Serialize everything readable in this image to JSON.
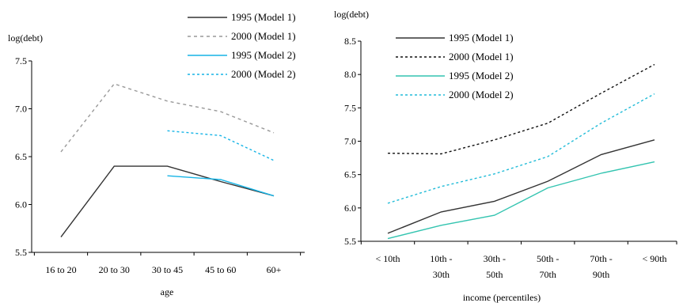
{
  "chart_data": [
    {
      "type": "line",
      "title": "",
      "ylabel": "log(debt)",
      "xlabel": "age",
      "categories": [
        [
          "16 to 20"
        ],
        [
          "20 to 30"
        ],
        [
          "30 to 45"
        ],
        [
          "45 to 60"
        ],
        [
          "60+"
        ]
      ],
      "ylim": [
        5.5,
        7.5
      ],
      "yticks": [
        "5.5",
        "6.0",
        "6.5",
        "7.0",
        "7.5"
      ],
      "grid": false,
      "legend_position": "top-right",
      "series": [
        {
          "name": "1995 (Model 1)",
          "color": "#333333",
          "dash": "solid",
          "values": [
            5.66,
            6.4,
            6.4,
            6.24,
            6.09
          ]
        },
        {
          "name": "2000 (Model 1)",
          "color": "#999999",
          "dash": "dashed",
          "values": [
            6.55,
            7.26,
            7.08,
            6.97,
            6.75
          ]
        },
        {
          "name": "1995 (Model 2)",
          "color": "#16b4e6",
          "dash": "solid",
          "values": [
            null,
            null,
            6.3,
            6.26,
            6.09
          ]
        },
        {
          "name": "2000 (Model 2)",
          "color": "#16b4e6",
          "dash": "dotted",
          "values": [
            null,
            null,
            6.77,
            6.72,
            6.46
          ]
        }
      ]
    },
    {
      "type": "line",
      "title": "",
      "ylabel": "log(debt)",
      "xlabel": "income (percentiles)",
      "categories": [
        [
          "< 10th"
        ],
        [
          "10th -",
          "30th"
        ],
        [
          "30th -",
          "50th"
        ],
        [
          "50th -",
          "70th"
        ],
        [
          "70th -",
          "90th"
        ],
        [
          "< 90th"
        ]
      ],
      "ylim": [
        5.5,
        8.5
      ],
      "yticks": [
        "5.5",
        "6.0",
        "6.5",
        "7.0",
        "7.5",
        "8.0",
        "8.5"
      ],
      "grid": false,
      "legend_position": "top-left",
      "series": [
        {
          "name": "1995 (Model 1)",
          "color": "#333333",
          "dash": "solid",
          "values": [
            5.62,
            5.94,
            6.1,
            6.4,
            6.8,
            7.02
          ]
        },
        {
          "name": "2000 (Model 1)",
          "color": "#111111",
          "dash": "dotted",
          "values": [
            6.82,
            6.81,
            7.02,
            7.27,
            7.72,
            8.15
          ]
        },
        {
          "name": "1995 (Model 2)",
          "color": "#33c4b0",
          "dash": "solid",
          "values": [
            5.54,
            5.74,
            5.89,
            6.3,
            6.52,
            6.69
          ]
        },
        {
          "name": "2000 (Model 2)",
          "color": "#22bcd8",
          "dash": "dotted",
          "values": [
            6.07,
            6.32,
            6.51,
            6.77,
            7.27,
            7.71
          ]
        }
      ]
    }
  ]
}
